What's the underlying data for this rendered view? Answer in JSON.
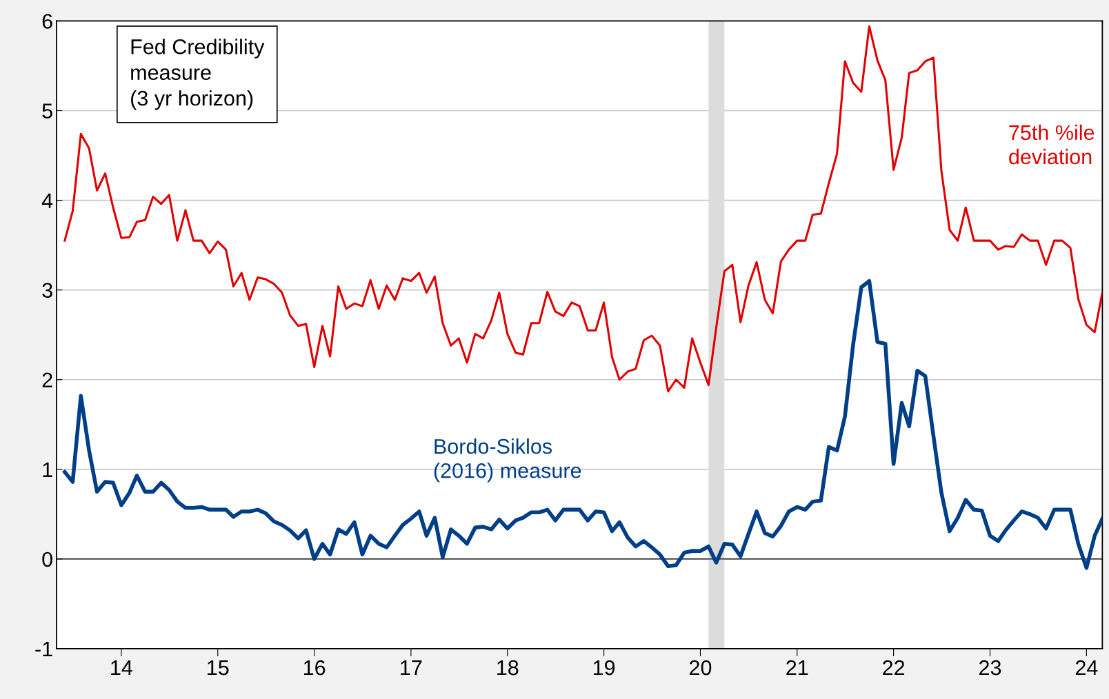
{
  "chart_data": {
    "type": "line",
    "x": [
      "2013-06",
      "2013-07",
      "2013-08",
      "2013-09",
      "2013-10",
      "2013-11",
      "2013-12",
      "2014-01",
      "2014-02",
      "2014-03",
      "2014-04",
      "2014-05",
      "2014-06",
      "2014-07",
      "2014-08",
      "2014-09",
      "2014-10",
      "2014-11",
      "2014-12",
      "2015-01",
      "2015-02",
      "2015-03",
      "2015-04",
      "2015-05",
      "2015-06",
      "2015-07",
      "2015-08",
      "2015-09",
      "2015-10",
      "2015-11",
      "2015-12",
      "2016-01",
      "2016-02",
      "2016-03",
      "2016-04",
      "2016-05",
      "2016-06",
      "2016-07",
      "2016-08",
      "2016-09",
      "2016-10",
      "2016-11",
      "2016-12",
      "2017-01",
      "2017-02",
      "2017-03",
      "2017-04",
      "2017-05",
      "2017-06",
      "2017-07",
      "2017-08",
      "2017-09",
      "2017-10",
      "2017-11",
      "2017-12",
      "2018-01",
      "2018-02",
      "2018-03",
      "2018-04",
      "2018-05",
      "2018-06",
      "2018-07",
      "2018-08",
      "2018-09",
      "2018-10",
      "2018-11",
      "2018-12",
      "2019-01",
      "2019-02",
      "2019-03",
      "2019-04",
      "2019-05",
      "2019-06",
      "2019-07",
      "2019-08",
      "2019-09",
      "2019-10",
      "2019-11",
      "2019-12",
      "2020-01",
      "2020-02",
      "2020-03",
      "2020-04",
      "2020-05",
      "2020-06",
      "2020-07",
      "2020-08",
      "2020-09",
      "2020-10",
      "2020-11",
      "2020-12",
      "2021-01",
      "2021-02",
      "2021-03",
      "2021-04",
      "2021-05",
      "2021-06",
      "2021-07",
      "2021-08",
      "2021-09",
      "2021-10",
      "2021-11",
      "2021-12",
      "2022-01",
      "2022-02",
      "2022-03",
      "2022-04",
      "2022-05",
      "2022-06",
      "2022-07",
      "2022-08",
      "2022-09",
      "2022-10",
      "2022-11",
      "2022-12",
      "2023-01",
      "2023-02",
      "2023-03",
      "2023-04",
      "2023-05",
      "2023-06",
      "2023-07",
      "2023-08",
      "2023-09",
      "2023-10",
      "2023-11",
      "2023-12",
      "2024-01",
      "2024-02",
      "2024-03"
    ],
    "series": [
      {
        "name": "75th %ile\ndeviation",
        "color": "#e00000",
        "values": [
          3.55,
          3.88,
          4.74,
          4.58,
          4.11,
          4.3,
          3.92,
          3.58,
          3.59,
          3.76,
          3.78,
          4.04,
          3.96,
          4.06,
          3.55,
          3.89,
          3.55,
          3.55,
          3.41,
          3.54,
          3.45,
          3.04,
          3.19,
          2.89,
          3.14,
          3.12,
          3.07,
          2.97,
          2.72,
          2.6,
          2.62,
          2.14,
          2.6,
          2.26,
          3.04,
          2.79,
          2.85,
          2.82,
          3.11,
          2.79,
          3.05,
          2.89,
          3.13,
          3.1,
          3.19,
          2.97,
          3.15,
          2.63,
          2.38,
          2.46,
          2.19,
          2.51,
          2.46,
          2.66,
          2.97,
          2.51,
          2.3,
          2.28,
          2.63,
          2.63,
          2.98,
          2.76,
          2.71,
          2.86,
          2.82,
          2.55,
          2.55,
          2.86,
          2.25,
          2.0,
          2.09,
          2.12,
          2.44,
          2.49,
          2.38,
          1.87,
          2.0,
          1.91,
          2.46,
          2.19,
          1.94,
          2.58,
          3.21,
          3.28,
          2.64,
          3.05,
          3.31,
          2.89,
          2.74,
          3.32,
          3.45,
          3.55,
          3.55,
          3.84,
          3.85,
          4.19,
          4.52,
          5.55,
          5.31,
          5.21,
          5.94,
          5.56,
          5.34,
          4.34,
          4.7,
          5.42,
          5.45,
          5.55,
          5.59,
          4.33,
          3.67,
          3.55,
          3.92,
          3.55,
          3.55,
          3.55,
          3.45,
          3.49,
          3.48,
          3.62,
          3.55,
          3.55,
          3.28,
          3.55,
          3.55,
          3.47,
          2.9,
          2.61,
          2.53,
          2.97
        ]
      },
      {
        "name": "Bordo-Siklos\n(2016) measure",
        "color": "#003f87",
        "values": [
          0.97,
          0.86,
          1.82,
          1.21,
          0.75,
          0.86,
          0.85,
          0.6,
          0.74,
          0.93,
          0.75,
          0.75,
          0.85,
          0.77,
          0.64,
          0.57,
          0.57,
          0.58,
          0.55,
          0.55,
          0.55,
          0.47,
          0.53,
          0.53,
          0.55,
          0.51,
          0.42,
          0.38,
          0.32,
          0.23,
          0.32,
          0.0,
          0.17,
          0.05,
          0.33,
          0.28,
          0.41,
          0.05,
          0.26,
          0.17,
          0.13,
          0.26,
          0.38,
          0.45,
          0.53,
          0.26,
          0.46,
          0.02,
          0.33,
          0.26,
          0.17,
          0.35,
          0.36,
          0.33,
          0.44,
          0.34,
          0.43,
          0.46,
          0.52,
          0.52,
          0.55,
          0.43,
          0.55,
          0.55,
          0.55,
          0.43,
          0.53,
          0.52,
          0.31,
          0.41,
          0.24,
          0.14,
          0.2,
          0.13,
          0.05,
          -0.08,
          -0.07,
          0.07,
          0.09,
          0.09,
          0.14,
          -0.04,
          0.17,
          0.16,
          0.03,
          0.28,
          0.53,
          0.29,
          0.25,
          0.37,
          0.53,
          0.58,
          0.55,
          0.64,
          0.65,
          1.25,
          1.21,
          1.59,
          2.39,
          3.03,
          3.1,
          2.42,
          2.4,
          1.06,
          1.74,
          1.48,
          2.1,
          2.04,
          1.37,
          0.74,
          0.31,
          0.46,
          0.66,
          0.55,
          0.54,
          0.26,
          0.2,
          0.32,
          0.43,
          0.53,
          0.5,
          0.46,
          0.34,
          0.55,
          0.55,
          0.55,
          0.17,
          -0.1,
          0.26,
          0.45
        ]
      }
    ],
    "annotations": [
      "Fed Credibility\nmeasure\n(3 yr horizon)"
    ],
    "xlim": [
      "2013-05",
      "2024-03"
    ],
    "xticks": [
      {
        "value": "2014-01",
        "label": "14"
      },
      {
        "value": "2015-01",
        "label": "15"
      },
      {
        "value": "2016-01",
        "label": "16"
      },
      {
        "value": "2017-01",
        "label": "17"
      },
      {
        "value": "2018-01",
        "label": "18"
      },
      {
        "value": "2019-01",
        "label": "19"
      },
      {
        "value": "2020-01",
        "label": "20"
      },
      {
        "value": "2021-01",
        "label": "21"
      },
      {
        "value": "2022-01",
        "label": "22"
      },
      {
        "value": "2023-01",
        "label": "23"
      },
      {
        "value": "2024-01",
        "label": "24"
      }
    ],
    "ylim": [
      -1,
      6
    ],
    "yticks": [
      -1,
      0,
      1,
      2,
      3,
      4,
      5,
      6
    ],
    "grid": "y",
    "legend": false,
    "ref_lines": [
      {
        "axis": "y",
        "value": 0,
        "color": "#000000"
      }
    ],
    "bands": [
      {
        "axis": "x",
        "from": "2020-02",
        "to": "2020-04",
        "color": "#dcdcdc"
      }
    ]
  }
}
